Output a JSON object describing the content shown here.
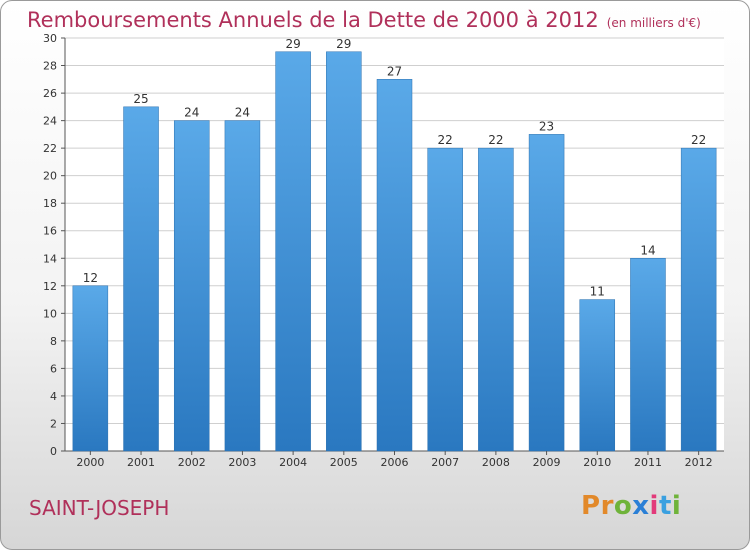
{
  "chart_data": {
    "type": "bar",
    "title": "Remboursements Annuels de la Dette de 2000 à 2012",
    "subtitle": "(en milliers d'€)",
    "categories": [
      "2000",
      "2001",
      "2002",
      "2003",
      "2004",
      "2005",
      "2006",
      "2007",
      "2008",
      "2009",
      "2010",
      "2011",
      "2012"
    ],
    "values": [
      12,
      25,
      24,
      24,
      29,
      29,
      27,
      22,
      22,
      23,
      11,
      14,
      22
    ],
    "ylim": [
      0,
      30
    ],
    "yticks": [
      0,
      2,
      4,
      6,
      8,
      10,
      12,
      14,
      16,
      18,
      20,
      22,
      24,
      26,
      28,
      30
    ],
    "grid": true,
    "bar_color_top": "#5aa9e8",
    "bar_color_bottom": "#2a78c0",
    "xlabel": "",
    "ylabel": ""
  },
  "footer": {
    "city": "SAINT-JOSEPH",
    "logo_text": "Proxiti",
    "logo_colors": [
      "#e2892a",
      "#e2892a",
      "#6fb33a",
      "#2a7fd6",
      "#e23a7a",
      "#3aa0e0",
      "#6fb33a"
    ]
  },
  "colors": {
    "title": "#b0305a",
    "grid": "#cfcfcf"
  }
}
